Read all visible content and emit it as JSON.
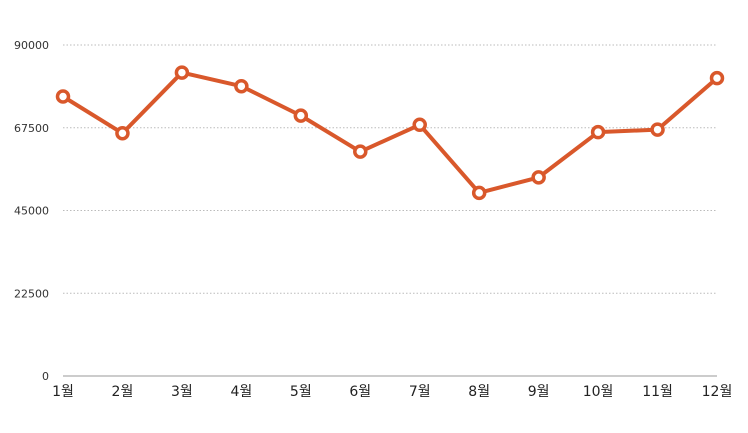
{
  "chart_data": {
    "type": "line",
    "title": "",
    "xlabel": "",
    "ylabel": "",
    "categories": [
      "1월",
      "2월",
      "3월",
      "4월",
      "5월",
      "6월",
      "7월",
      "8월",
      "9월",
      "10월",
      "11월",
      "12월"
    ],
    "series": [
      {
        "values": [
          76000,
          66000,
          82500,
          78800,
          70800,
          61000,
          68300,
          49800,
          54000,
          66300,
          67000,
          81000
        ]
      }
    ],
    "y_ticks": [
      "0",
      "22500",
      "45000",
      "67500",
      "90000"
    ],
    "ylim": [
      0,
      90000
    ],
    "grid": true,
    "legend": "none",
    "colors": {
      "line": "#d9582b",
      "marker_fill": "#ffffff",
      "grid": "#bbbbbb",
      "axis": "#999999"
    }
  }
}
